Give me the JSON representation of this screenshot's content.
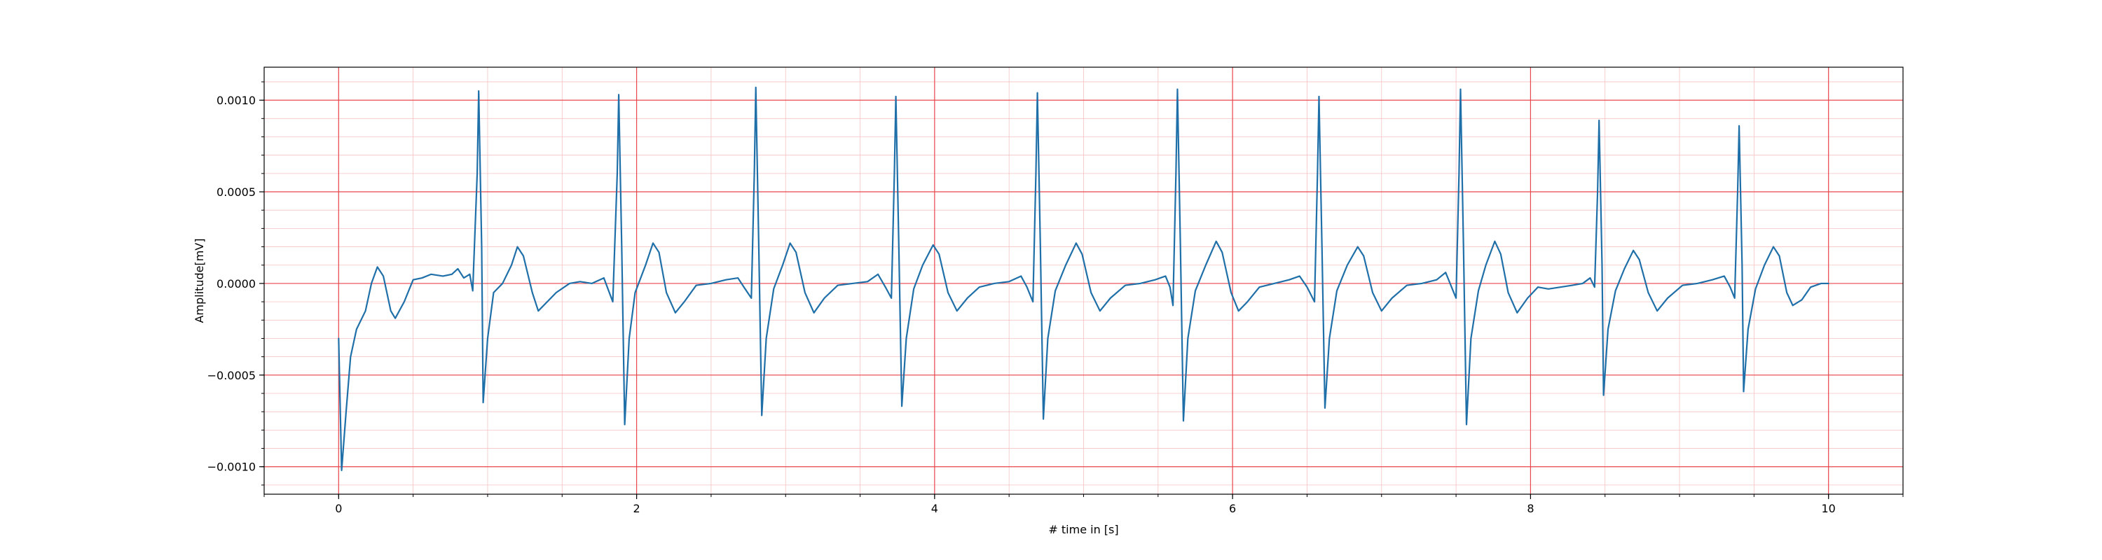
{
  "chart_data": {
    "type": "line",
    "title": "",
    "xlabel": "# time in [s]",
    "ylabel": "Amplitude[mV]",
    "xlim": [
      -0.5,
      10.5
    ],
    "ylim": [
      -0.00115,
      0.00118
    ],
    "x_major_ticks": [
      0,
      2,
      4,
      6,
      8,
      10
    ],
    "x_tick_labels": [
      "0",
      "2",
      "4",
      "6",
      "8",
      "10"
    ],
    "x_minor_step": 0.5,
    "y_major_ticks": [
      -0.001,
      -0.0005,
      0.0,
      0.0005,
      0.001
    ],
    "y_tick_labels": [
      "−0.0010",
      "−0.0005",
      "0.0000",
      "0.0005",
      "0.0010"
    ],
    "y_minor_step": 0.0001,
    "grid": {
      "major": true,
      "minor": true,
      "major_color": "#e8474c",
      "minor_color": "#f4c2c2"
    },
    "legend": "none",
    "series": [
      {
        "color": "#1f6fa8",
        "r_peaks": [
          0.94,
          1.88,
          2.8,
          3.74,
          4.69,
          5.63,
          6.58,
          7.53,
          8.46,
          9.4
        ],
        "r_amplitudes": [
          0.00105,
          0.00103,
          0.00107,
          0.00102,
          0.00104,
          0.00106,
          0.00102,
          0.00106,
          0.00089,
          0.00086
        ],
        "s_amplitudes": [
          -0.00065,
          -0.00077,
          -0.00072,
          -0.00067,
          -0.00074,
          -0.00075,
          -0.00068,
          -0.00077,
          -0.00061,
          -0.00059
        ],
        "t_amplitudes": [
          0.0002,
          0.00022,
          0.00022,
          0.00021,
          0.00022,
          0.00023,
          0.0002,
          0.00023,
          0.00018,
          0.0002
        ],
        "points": [
          [
            0.0,
            -0.0003
          ],
          [
            0.02,
            -0.00102
          ],
          [
            0.05,
            -0.0007
          ],
          [
            0.08,
            -0.0004
          ],
          [
            0.12,
            -0.00025
          ],
          [
            0.18,
            -0.00015
          ],
          [
            0.22,
            0.0
          ],
          [
            0.26,
            9e-05
          ],
          [
            0.3,
            4e-05
          ],
          [
            0.35,
            -0.00015
          ],
          [
            0.38,
            -0.00019
          ],
          [
            0.44,
            -0.0001
          ],
          [
            0.5,
            2e-05
          ],
          [
            0.56,
            3e-05
          ],
          [
            0.62,
            5e-05
          ],
          [
            0.7,
            4e-05
          ],
          [
            0.76,
            5e-05
          ],
          [
            0.8,
            8e-05
          ],
          [
            0.84,
            3e-05
          ],
          [
            0.88,
            5e-05
          ],
          [
            0.9,
            -4e-05
          ],
          [
            0.93,
            0.0006
          ],
          [
            0.94,
            0.00105
          ],
          [
            0.96,
            0.0002
          ],
          [
            0.97,
            -0.00065
          ],
          [
            1.0,
            -0.0003
          ],
          [
            1.04,
            -5e-05
          ],
          [
            1.1,
            0.0
          ],
          [
            1.16,
            0.0001
          ],
          [
            1.2,
            0.0002
          ],
          [
            1.24,
            0.00015
          ],
          [
            1.3,
            -5e-05
          ],
          [
            1.34,
            -0.00015
          ],
          [
            1.4,
            -0.0001
          ],
          [
            1.46,
            -5e-05
          ],
          [
            1.55,
            0.0
          ],
          [
            1.62,
            1e-05
          ],
          [
            1.7,
            0.0
          ],
          [
            1.78,
            3e-05
          ],
          [
            1.84,
            -0.0001
          ],
          [
            1.87,
            0.0006
          ],
          [
            1.88,
            0.00103
          ],
          [
            1.9,
            0.0002
          ],
          [
            1.92,
            -0.00077
          ],
          [
            1.95,
            -0.0003
          ],
          [
            1.99,
            -5e-05
          ],
          [
            2.06,
            0.0001
          ],
          [
            2.11,
            0.00022
          ],
          [
            2.15,
            0.00017
          ],
          [
            2.2,
            -5e-05
          ],
          [
            2.26,
            -0.00016
          ],
          [
            2.32,
            -0.0001
          ],
          [
            2.4,
            -1e-05
          ],
          [
            2.5,
            0.0
          ],
          [
            2.6,
            2e-05
          ],
          [
            2.68,
            3e-05
          ],
          [
            2.72,
            -2e-05
          ],
          [
            2.77,
            -8e-05
          ],
          [
            2.79,
            0.0006
          ],
          [
            2.8,
            0.00107
          ],
          [
            2.82,
            0.0002
          ],
          [
            2.84,
            -0.00072
          ],
          [
            2.87,
            -0.0003
          ],
          [
            2.92,
            -3e-05
          ],
          [
            2.98,
            0.0001
          ],
          [
            3.03,
            0.00022
          ],
          [
            3.07,
            0.00017
          ],
          [
            3.13,
            -5e-05
          ],
          [
            3.19,
            -0.00016
          ],
          [
            3.26,
            -8e-05
          ],
          [
            3.35,
            -1e-05
          ],
          [
            3.45,
            0.0
          ],
          [
            3.55,
            1e-05
          ],
          [
            3.62,
            5e-05
          ],
          [
            3.67,
            -2e-05
          ],
          [
            3.71,
            -8e-05
          ],
          [
            3.73,
            0.0006
          ],
          [
            3.74,
            0.00102
          ],
          [
            3.76,
            0.0002
          ],
          [
            3.78,
            -0.00067
          ],
          [
            3.81,
            -0.0003
          ],
          [
            3.86,
            -3e-05
          ],
          [
            3.92,
            0.0001
          ],
          [
            3.99,
            0.00021
          ],
          [
            4.03,
            0.00016
          ],
          [
            4.09,
            -5e-05
          ],
          [
            4.15,
            -0.00015
          ],
          [
            4.22,
            -8e-05
          ],
          [
            4.3,
            -2e-05
          ],
          [
            4.4,
            0.0
          ],
          [
            4.5,
            1e-05
          ],
          [
            4.58,
            4e-05
          ],
          [
            4.62,
            -2e-05
          ],
          [
            4.66,
            -0.0001
          ],
          [
            4.68,
            0.0006
          ],
          [
            4.69,
            0.00104
          ],
          [
            4.71,
            0.0002
          ],
          [
            4.73,
            -0.00074
          ],
          [
            4.76,
            -0.0003
          ],
          [
            4.81,
            -4e-05
          ],
          [
            4.88,
            0.0001
          ],
          [
            4.95,
            0.00022
          ],
          [
            4.99,
            0.00016
          ],
          [
            5.05,
            -5e-05
          ],
          [
            5.11,
            -0.00015
          ],
          [
            5.18,
            -8e-05
          ],
          [
            5.28,
            -1e-05
          ],
          [
            5.38,
            0.0
          ],
          [
            5.48,
            2e-05
          ],
          [
            5.55,
            4e-05
          ],
          [
            5.58,
            -2e-05
          ],
          [
            5.6,
            -0.00012
          ],
          [
            5.62,
            0.0006
          ],
          [
            5.63,
            0.00106
          ],
          [
            5.65,
            0.0002
          ],
          [
            5.67,
            -0.00075
          ],
          [
            5.7,
            -0.0003
          ],
          [
            5.75,
            -4e-05
          ],
          [
            5.82,
            0.0001
          ],
          [
            5.89,
            0.00023
          ],
          [
            5.93,
            0.00017
          ],
          [
            5.99,
            -5e-05
          ],
          [
            6.04,
            -0.00015
          ],
          [
            6.1,
            -0.0001
          ],
          [
            6.18,
            -2e-05
          ],
          [
            6.28,
            0.0
          ],
          [
            6.38,
            2e-05
          ],
          [
            6.45,
            4e-05
          ],
          [
            6.5,
            -2e-05
          ],
          [
            6.55,
            -0.0001
          ],
          [
            6.57,
            0.0006
          ],
          [
            6.58,
            0.00102
          ],
          [
            6.6,
            0.0002
          ],
          [
            6.62,
            -0.00068
          ],
          [
            6.65,
            -0.0003
          ],
          [
            6.7,
            -4e-05
          ],
          [
            6.77,
            0.0001
          ],
          [
            6.84,
            0.0002
          ],
          [
            6.88,
            0.00015
          ],
          [
            6.94,
            -5e-05
          ],
          [
            7.0,
            -0.00015
          ],
          [
            7.07,
            -8e-05
          ],
          [
            7.17,
            -1e-05
          ],
          [
            7.27,
            0.0
          ],
          [
            7.37,
            2e-05
          ],
          [
            7.43,
            6e-05
          ],
          [
            7.47,
            -2e-05
          ],
          [
            7.5,
            -8e-05
          ],
          [
            7.52,
            0.0006
          ],
          [
            7.53,
            0.00106
          ],
          [
            7.55,
            0.0002
          ],
          [
            7.57,
            -0.00077
          ],
          [
            7.6,
            -0.0003
          ],
          [
            7.65,
            -4e-05
          ],
          [
            7.7,
            0.0001
          ],
          [
            7.76,
            0.00023
          ],
          [
            7.8,
            0.00016
          ],
          [
            7.85,
            -5e-05
          ],
          [
            7.91,
            -0.00016
          ],
          [
            7.98,
            -8e-05
          ],
          [
            8.05,
            -2e-05
          ],
          [
            8.12,
            -3e-05
          ],
          [
            8.2,
            -2e-05
          ],
          [
            8.28,
            -1e-05
          ],
          [
            8.35,
            0.0
          ],
          [
            8.4,
            3e-05
          ],
          [
            8.43,
            -2e-05
          ],
          [
            8.45,
            0.0005
          ],
          [
            8.46,
            0.00089
          ],
          [
            8.48,
            0.0001
          ],
          [
            8.49,
            -0.00061
          ],
          [
            8.52,
            -0.00025
          ],
          [
            8.57,
            -4e-05
          ],
          [
            8.63,
            8e-05
          ],
          [
            8.69,
            0.00018
          ],
          [
            8.73,
            0.00013
          ],
          [
            8.79,
            -5e-05
          ],
          [
            8.85,
            -0.00015
          ],
          [
            8.92,
            -8e-05
          ],
          [
            9.02,
            -1e-05
          ],
          [
            9.12,
            0.0
          ],
          [
            9.22,
            2e-05
          ],
          [
            9.3,
            4e-05
          ],
          [
            9.34,
            -2e-05
          ],
          [
            9.37,
            -8e-05
          ],
          [
            9.39,
            0.0005
          ],
          [
            9.4,
            0.00086
          ],
          [
            9.42,
            0.0001
          ],
          [
            9.43,
            -0.00059
          ],
          [
            9.46,
            -0.00025
          ],
          [
            9.51,
            -3e-05
          ],
          [
            9.57,
            0.0001
          ],
          [
            9.63,
            0.0002
          ],
          [
            9.67,
            0.00015
          ],
          [
            9.72,
            -5e-05
          ],
          [
            9.76,
            -0.00012
          ],
          [
            9.82,
            -9e-05
          ],
          [
            9.88,
            -2e-05
          ],
          [
            9.95,
            0.0
          ],
          [
            10.0,
            0.0
          ]
        ]
      }
    ]
  }
}
